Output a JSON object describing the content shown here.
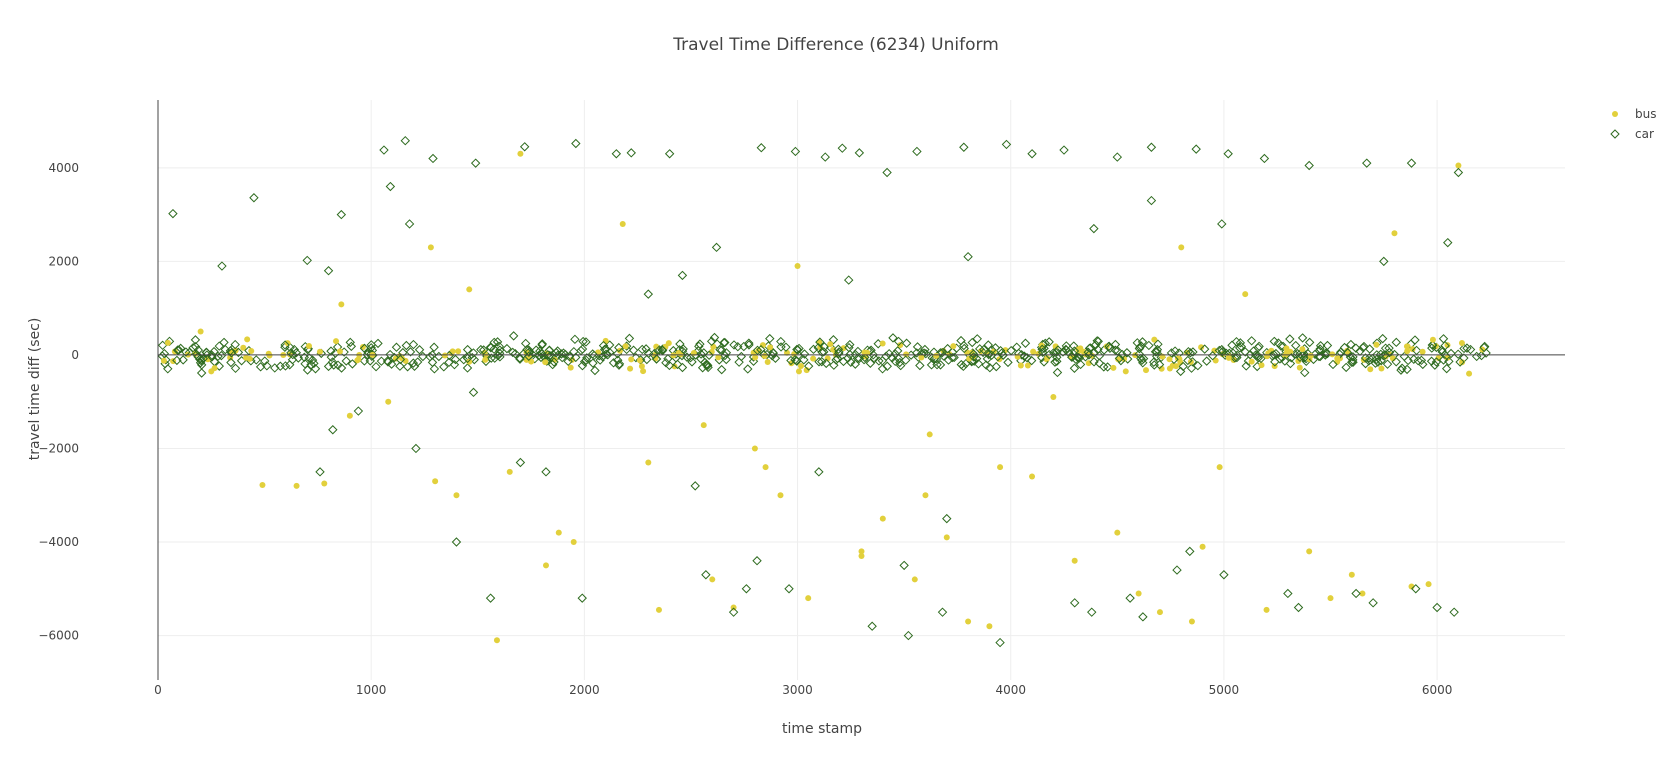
{
  "chart_data": {
    "type": "scatter",
    "title": "Travel Time Difference (6234) Uniform",
    "xlabel": "time stamp",
    "ylabel": "travel time diff (sec)",
    "xlim": [
      0,
      6600
    ],
    "ylim": [
      -6950,
      5450
    ],
    "xticks": [
      0,
      1000,
      2000,
      3000,
      4000,
      5000,
      6000
    ],
    "yticks": [
      -6000,
      -4000,
      -2000,
      0,
      2000,
      4000
    ],
    "xtick_labels": [
      "0",
      "1000",
      "2000",
      "3000",
      "4000",
      "5000",
      "6000"
    ],
    "ytick_labels": [
      "−6000",
      "−4000",
      "−2000",
      "0",
      "2000",
      "4000"
    ],
    "grid": true,
    "legend_position": "top-right",
    "colors": {
      "bus": "#e2d03c",
      "car": "#2e6b1f",
      "grid": "#eeeeee",
      "axis": "#444444"
    },
    "series": [
      {
        "name": "bus",
        "marker": "circle",
        "x": [
          490,
          650,
          780,
          860,
          1080,
          1280,
          1460,
          1590,
          1650,
          1820,
          1880,
          2180,
          2350,
          2560,
          2700,
          2850,
          2920,
          3000,
          3300,
          3400,
          3550,
          3620,
          3800,
          3950,
          4100,
          4200,
          4500,
          4600,
          4850,
          4980,
          5100,
          5400,
          5650,
          5880,
          6100,
          1300,
          1700,
          1950,
          2100,
          2800,
          3050,
          3600,
          4300,
          4700,
          5200,
          5800,
          6150,
          200,
          900,
          1400,
          2300,
          3300,
          3900,
          4800,
          5500,
          5960,
          2600,
          3700,
          4900,
          5600
        ],
        "y": [
          -2780,
          -2800,
          -2750,
          1080,
          -1000,
          2300,
          1400,
          -6100,
          -2500,
          -4500,
          -3800,
          2800,
          -5450,
          -1500,
          -5400,
          -2400,
          -3000,
          1900,
          -4200,
          -3500,
          -4800,
          -1700,
          -5700,
          -2400,
          -2600,
          -900,
          -3800,
          -5100,
          -5700,
          -2400,
          1300,
          -4200,
          -5100,
          -4950,
          4050,
          -2700,
          4300,
          -4000,
          300,
          -2000,
          -5200,
          -3000,
          -4400,
          -5500,
          -5450,
          2600,
          -400,
          500,
          -1300,
          -3000,
          -2300,
          -4300,
          -5800,
          2300,
          -5200,
          -4900,
          -4800,
          -3900,
          -4100,
          -4700
        ]
      },
      {
        "name": "car",
        "marker": "diamond-open",
        "x": [
          70,
          450,
          700,
          800,
          860,
          1060,
          1090,
          1160,
          1290,
          1490,
          1720,
          1960,
          2150,
          2220,
          2400,
          2620,
          2830,
          2990,
          3130,
          3210,
          3290,
          3420,
          3560,
          3780,
          3980,
          4100,
          4250,
          4500,
          4660,
          4870,
          5020,
          5190,
          5400,
          5670,
          5880,
          6100,
          300,
          760,
          820,
          1180,
          1400,
          1560,
          1820,
          2090,
          2520,
          2760,
          3100,
          3500,
          3700,
          4300,
          4560,
          4780,
          5300,
          5700,
          6000,
          940,
          1480,
          1990,
          2570,
          2700,
          2810,
          2960,
          3350,
          3520,
          3680,
          3950,
          4380,
          4620,
          4840,
          5000,
          5350,
          5620,
          5900,
          6080,
          1210,
          1700,
          2300,
          3800,
          4660,
          5750,
          6050,
          2460,
          3240,
          4390,
          4990
        ],
        "y": [
          3020,
          3360,
          2020,
          1800,
          3000,
          4380,
          3600,
          4580,
          4200,
          4100,
          4450,
          4520,
          4300,
          4320,
          4300,
          2300,
          4430,
          4350,
          4230,
          4420,
          4320,
          3900,
          4350,
          4440,
          4500,
          4300,
          4380,
          4230,
          4440,
          4400,
          4300,
          4200,
          4050,
          4100,
          4100,
          3900,
          1900,
          -2500,
          -1600,
          2800,
          -4000,
          -5200,
          -2500,
          200,
          -2800,
          -5000,
          -2500,
          -4500,
          -3500,
          -5300,
          -5200,
          -4600,
          -5100,
          -5300,
          -5400,
          -1200,
          -800,
          -5200,
          -4700,
          -5500,
          -4400,
          -5000,
          -5800,
          -6000,
          -5500,
          -6150,
          -5500,
          -5600,
          -4200,
          -4700,
          -5400,
          -5100,
          -5000,
          -5500,
          -2000,
          -2300,
          1300,
          2100,
          3300,
          2000,
          2400,
          1700,
          1600,
          2700,
          2800
        ]
      }
    ],
    "band": {
      "x_range": [
        20,
        6230
      ],
      "y_range": [
        -450,
        450
      ]
    }
  }
}
